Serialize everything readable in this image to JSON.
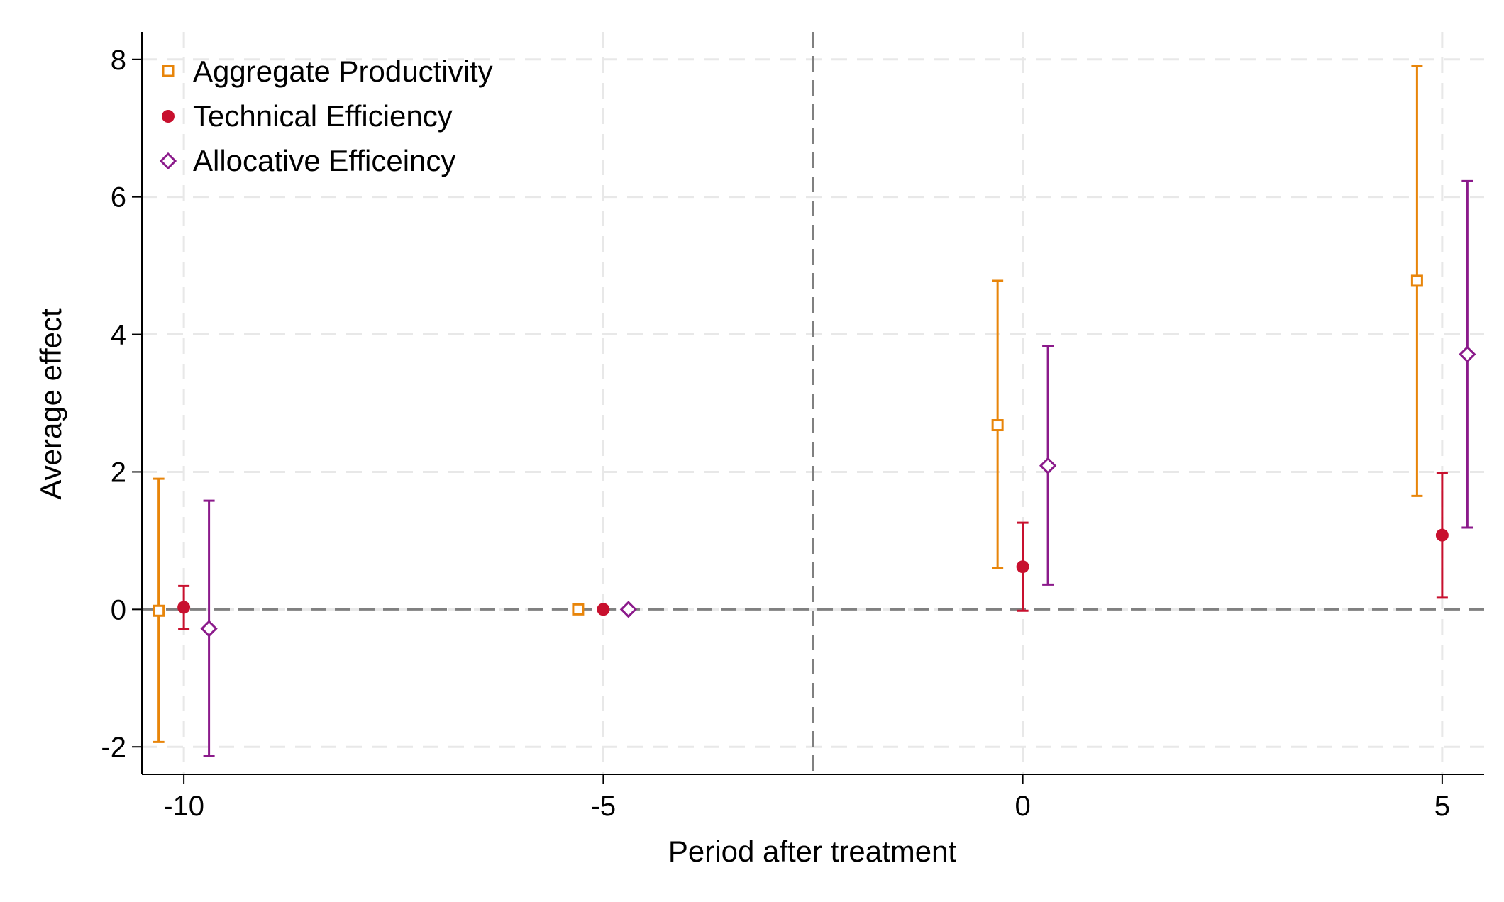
{
  "chart_data": {
    "type": "scatter",
    "title": "",
    "xlabel": "Period after treatment",
    "ylabel": "Average effect",
    "xlim": [
      -10.5,
      5.5
    ],
    "ylim": [
      -2.4,
      8.4
    ],
    "xticks": [
      -10,
      -5,
      0,
      5
    ],
    "xtick_labels": [
      "-10",
      "-5",
      "0",
      "5"
    ],
    "yticks": [
      -2,
      0,
      2,
      4,
      6,
      8
    ],
    "ytick_labels": [
      "-2",
      "0",
      "2",
      "4",
      "6",
      "8"
    ],
    "grid": true,
    "legend_position": "top-left",
    "reference_lines": {
      "y": 0,
      "x": -2.5
    },
    "series": [
      {
        "name": "Aggregate Productivity",
        "color": "#e8850a",
        "marker": "hollow-square",
        "offset": -0.3,
        "x": [
          -10,
          -5,
          0,
          5
        ],
        "y": [
          -0.02,
          0.0,
          2.68,
          4.78
        ],
        "ci_low": [
          -1.93,
          null,
          0.6,
          1.65
        ],
        "ci_high": [
          1.9,
          null,
          4.78,
          7.9
        ]
      },
      {
        "name": "Technical Efficiency",
        "color": "#c8102e",
        "marker": "filled-circle",
        "offset": 0.0,
        "x": [
          -10,
          -5,
          0,
          5
        ],
        "y": [
          0.03,
          0.0,
          0.62,
          1.08
        ],
        "ci_low": [
          -0.29,
          null,
          -0.02,
          0.17
        ],
        "ci_high": [
          0.34,
          null,
          1.26,
          1.98
        ]
      },
      {
        "name": "Allocative Efficeincy",
        "color": "#8b1a8b",
        "marker": "hollow-diamond",
        "offset": 0.3,
        "x": [
          -10,
          -5,
          0,
          5
        ],
        "y": [
          -0.28,
          0.0,
          2.09,
          3.71
        ],
        "ci_low": [
          -2.13,
          null,
          0.36,
          1.19
        ],
        "ci_high": [
          1.58,
          null,
          3.83,
          6.23
        ]
      }
    ]
  }
}
